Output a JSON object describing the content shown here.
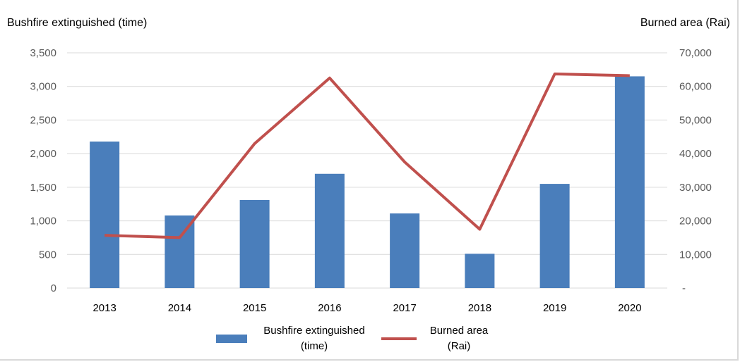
{
  "chart_data": {
    "type": "bar+line",
    "categories": [
      "2013",
      "2014",
      "2015",
      "2016",
      "2017",
      "2018",
      "2019",
      "2020"
    ],
    "series": [
      {
        "name": "Bushfire extinguished (time)",
        "type": "bar",
        "axis": "left",
        "values": [
          2180,
          1080,
          1310,
          1700,
          1110,
          510,
          1550,
          3150
        ]
      },
      {
        "name": "Burned area (Rai)",
        "type": "line",
        "axis": "right",
        "values": [
          15700,
          15000,
          43000,
          62500,
          37500,
          17500,
          63700,
          63200
        ]
      }
    ],
    "left_axis": {
      "title": "Bushfire extinguished (time)",
      "min": 0,
      "max": 3500,
      "ticks": [
        0,
        500,
        1000,
        1500,
        2000,
        2500,
        3000,
        3500
      ],
      "tick_labels": [
        "0",
        "500",
        "1,000",
        "1,500",
        "2,000",
        "2,500",
        "3,000",
        "3,500"
      ]
    },
    "right_axis": {
      "title": "Burned area (Rai)",
      "min": 0,
      "max": 70000,
      "ticks": [
        0,
        10000,
        20000,
        30000,
        40000,
        50000,
        60000,
        70000
      ],
      "tick_labels": [
        "-",
        "10,000",
        "20,000",
        "30,000",
        "40,000",
        "50,000",
        "60,000",
        "70,000"
      ]
    },
    "legend": {
      "bar_label_line1": "Bushfire extinguished",
      "bar_label_line2": "(time)",
      "line_label_line1": "Burned area",
      "line_label_line2": "(Rai)",
      "position": "bottom"
    },
    "grid": true,
    "colors": {
      "bar": "#4a7ebb",
      "line": "#c0504d",
      "grid": "#d9d9d9"
    }
  }
}
